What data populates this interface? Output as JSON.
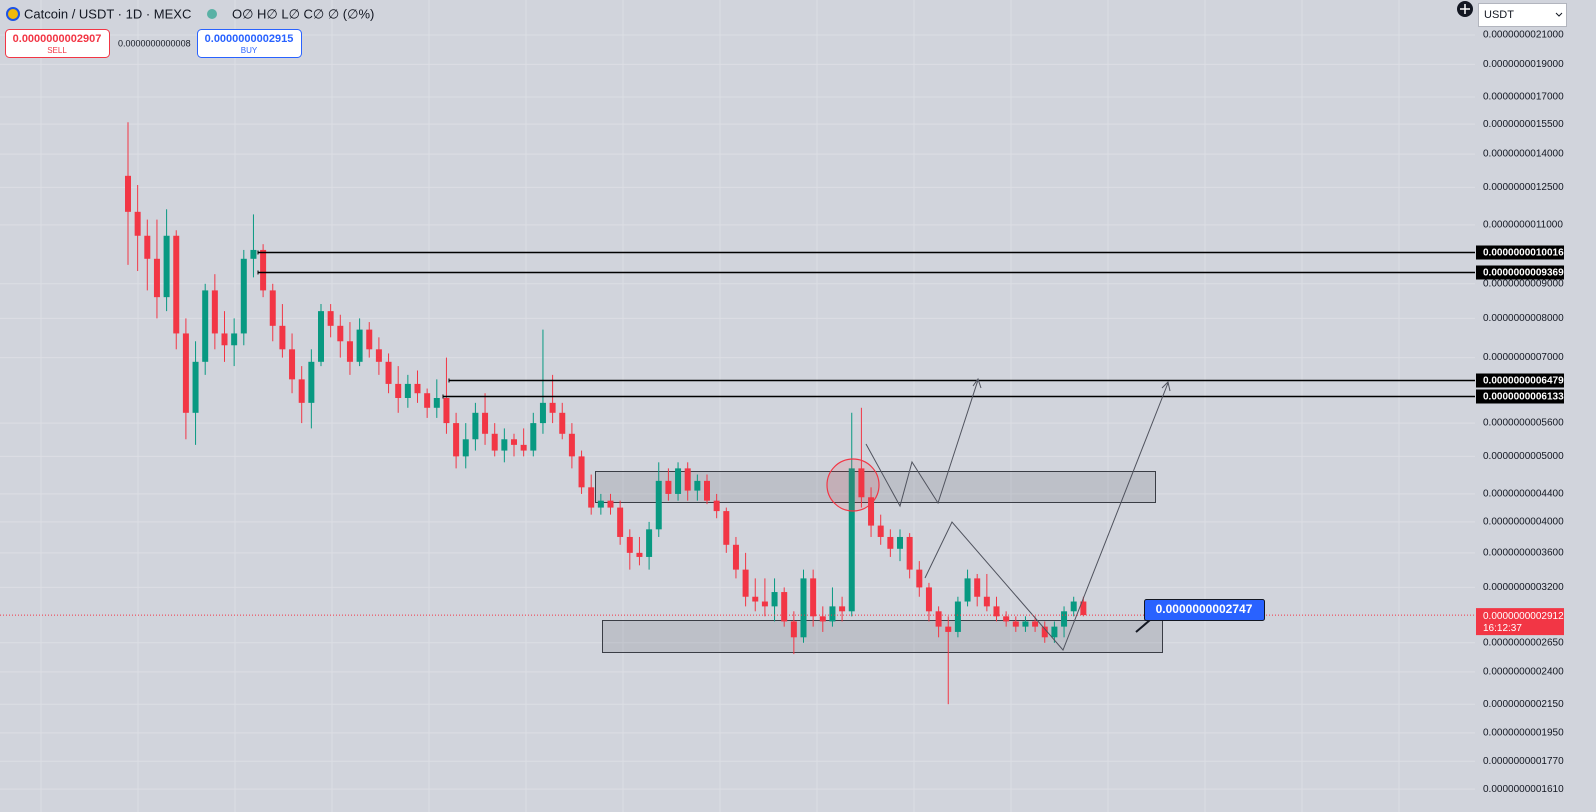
{
  "header": {
    "symbol": "Catcoin / USDT · 1D · MEXC",
    "ohlc": "O∅ H∅ L∅ C∅ ∅ (∅%)",
    "sell_price": "0.0000000002907",
    "sell_label": "SELL",
    "spread": "0.0000000000008",
    "buy_price": "0.0000000002915",
    "buy_label": "BUY",
    "currency": "USDT"
  },
  "chart_data": {
    "type": "candlestick",
    "log_scale": true,
    "grid": true,
    "up_color": "#089981",
    "down_color": "#f23645",
    "open": [
      1.3e-09,
      1.15e-09,
      1.06e-09,
      9.8e-10,
      8.6e-10,
      1.06e-09,
      7.6e-10,
      5.8e-10,
      6.9e-10,
      8.8e-10,
      7.6e-10,
      7.3e-10,
      7.6e-10,
      9.8e-10,
      1.01e-09,
      8.8e-10,
      7.8e-10,
      7.2e-10,
      6.5e-10,
      6e-10,
      6.9e-10,
      8.2e-10,
      7.8e-10,
      7.4e-10,
      6.9e-10,
      7.7e-10,
      7.2e-10,
      6.9e-10,
      6.4e-10,
      6.1e-10,
      6.4e-10,
      6.2e-10,
      5.9e-10,
      6.1e-10,
      5.6e-10,
      5e-10,
      5.3e-10,
      5.8e-10,
      5.4e-10,
      5.1e-10,
      5.3e-10,
      5.2e-10,
      5.1e-10,
      5.6e-10,
      6e-10,
      5.8e-10,
      5.4e-10,
      5e-10,
      4.5e-10,
      4.2e-10,
      4.3e-10,
      4.2e-10,
      3.8e-10,
      3.6e-10,
      3.55e-10,
      3.9e-10,
      4.6e-10,
      4.4e-10,
      4.8e-10,
      4.45e-10,
      4.6e-10,
      4.3e-10,
      4.15e-10,
      3.7e-10,
      3.4e-10,
      3.1e-10,
      3.05e-10,
      3e-10,
      3.15e-10,
      2.85e-10,
      2.7e-10,
      3.3e-10,
      2.9e-10,
      2.85e-10,
      3e-10,
      2.95e-10,
      4.8e-10,
      4.35e-10,
      3.95e-10,
      3.8e-10,
      3.65e-10,
      3.8e-10,
      3.4e-10,
      3.2e-10,
      2.95e-10,
      2.8e-10,
      2.75e-10,
      3.05e-10,
      3.3e-10,
      3.1e-10,
      3e-10,
      2.9e-10,
      2.85e-10,
      2.8e-10,
      2.85e-10,
      2.8e-10,
      2.7e-10,
      2.8e-10,
      2.95e-10,
      3.05e-10
    ],
    "high": [
      1.56e-09,
      1.26e-09,
      1.12e-09,
      1.12e-09,
      1.16e-09,
      1.08e-09,
      8e-10,
      7.4e-10,
      9e-10,
      9.3e-10,
      8.2e-10,
      8e-10,
      1.01e-09,
      1.14e-09,
      1.03e-09,
      9e-10,
      8.4e-10,
      7.6e-10,
      6.8e-10,
      7.2e-10,
      8.4e-10,
      8.4e-10,
      8.1e-10,
      7.9e-10,
      8e-10,
      7.9e-10,
      7.5e-10,
      7.1e-10,
      6.8e-10,
      6.6e-10,
      6.7e-10,
      6.3e-10,
      6.5e-10,
      7e-10,
      5.8e-10,
      5.6e-10,
      6e-10,
      6.2e-10,
      5.6e-10,
      5.5e-10,
      5.4e-10,
      5.5e-10,
      5.8e-10,
      7.7e-10,
      6.6e-10,
      6e-10,
      5.6e-10,
      5.1e-10,
      4.7e-10,
      4.4e-10,
      4.4e-10,
      4.3e-10,
      3.9e-10,
      3.8e-10,
      4e-10,
      4.9e-10,
      4.8e-10,
      4.9e-10,
      4.9e-10,
      4.7e-10,
      4.7e-10,
      4.4e-10,
      4.2e-10,
      3.8e-10,
      3.6e-10,
      3.3e-10,
      3.3e-10,
      3.3e-10,
      3.2e-10,
      2.95e-10,
      3.4e-10,
      3.4e-10,
      3e-10,
      3.2e-10,
      3.1e-10,
      5.8e-10,
      5.9e-10,
      4.5e-10,
      4.1e-10,
      3.9e-10,
      3.9e-10,
      3.85e-10,
      3.5e-10,
      3.25e-10,
      3e-10,
      2.9e-10,
      3.1e-10,
      3.4e-10,
      3.35e-10,
      3.35e-10,
      3.1e-10,
      2.95e-10,
      2.9e-10,
      2.9e-10,
      2.9e-10,
      2.85e-10,
      2.85e-10,
      3e-10,
      3.1e-10,
      3.1e-10
    ],
    "low": [
      9.6e-10,
      9.4e-10,
      8.8e-10,
      8e-10,
      8.2e-10,
      7.2e-10,
      5.3e-10,
      5.2e-10,
      6.6e-10,
      7.2e-10,
      6.9e-10,
      6.8e-10,
      7.3e-10,
      9.2e-10,
      8.6e-10,
      7.4e-10,
      7e-10,
      6.2e-10,
      5.6e-10,
      5.5e-10,
      6.8e-10,
      7.5e-10,
      7e-10,
      6.6e-10,
      6.8e-10,
      7e-10,
      6.6e-10,
      6.2e-10,
      5.8e-10,
      5.9e-10,
      6e-10,
      5.7e-10,
      5.7e-10,
      5.4e-10,
      4.8e-10,
      4.8e-10,
      5.1e-10,
      5.2e-10,
      5e-10,
      4.9e-10,
      5e-10,
      5e-10,
      5e-10,
      5.4e-10,
      5.6e-10,
      5.3e-10,
      4.8e-10,
      4.4e-10,
      4.1e-10,
      4.1e-10,
      4.1e-10,
      3.7e-10,
      3.4e-10,
      3.45e-10,
      3.4e-10,
      3.8e-10,
      4.3e-10,
      4.3e-10,
      4.3e-10,
      4.3e-10,
      4.25e-10,
      4.05e-10,
      3.6e-10,
      3.3e-10,
      3e-10,
      2.95e-10,
      2.9e-10,
      2.85e-10,
      2.8e-10,
      2.55e-10,
      2.65e-10,
      2.8e-10,
      2.75e-10,
      2.8e-10,
      2.85e-10,
      2.9e-10,
      4.2e-10,
      3.8e-10,
      3.7e-10,
      3.55e-10,
      3.5e-10,
      3.3e-10,
      3.1e-10,
      2.85e-10,
      2.7e-10,
      2.15e-10,
      2.7e-10,
      3e-10,
      3e-10,
      2.95e-10,
      2.85e-10,
      2.8e-10,
      2.75e-10,
      2.75e-10,
      2.75e-10,
      2.65e-10,
      2.65e-10,
      2.7e-10,
      2.9e-10,
      2.9e-10
    ],
    "close": [
      1.15e-09,
      1.06e-09,
      9.8e-10,
      8.6e-10,
      1.06e-09,
      7.6e-10,
      5.8e-10,
      6.9e-10,
      8.8e-10,
      7.6e-10,
      7.3e-10,
      7.6e-10,
      9.8e-10,
      1.01e-09,
      8.8e-10,
      7.8e-10,
      7.2e-10,
      6.5e-10,
      6e-10,
      6.9e-10,
      8.2e-10,
      7.8e-10,
      7.4e-10,
      6.9e-10,
      7.7e-10,
      7.2e-10,
      6.9e-10,
      6.4e-10,
      6.1e-10,
      6.4e-10,
      6.2e-10,
      5.9e-10,
      6.1e-10,
      5.6e-10,
      5e-10,
      5.3e-10,
      5.8e-10,
      5.4e-10,
      5.1e-10,
      5.3e-10,
      5.2e-10,
      5.1e-10,
      5.6e-10,
      6e-10,
      5.8e-10,
      5.4e-10,
      5e-10,
      4.5e-10,
      4.2e-10,
      4.3e-10,
      4.2e-10,
      3.8e-10,
      3.6e-10,
      3.55e-10,
      3.9e-10,
      4.6e-10,
      4.4e-10,
      4.8e-10,
      4.45e-10,
      4.6e-10,
      4.3e-10,
      4.15e-10,
      3.7e-10,
      3.4e-10,
      3.1e-10,
      3.05e-10,
      3e-10,
      3.15e-10,
      2.85e-10,
      2.7e-10,
      3.3e-10,
      2.9e-10,
      2.85e-10,
      3e-10,
      2.95e-10,
      4.8e-10,
      4.35e-10,
      3.95e-10,
      3.8e-10,
      3.65e-10,
      3.8e-10,
      3.4e-10,
      3.2e-10,
      2.95e-10,
      2.8e-10,
      2.75e-10,
      3.05e-10,
      3.3e-10,
      3.1e-10,
      3e-10,
      2.9e-10,
      2.85e-10,
      2.8e-10,
      2.85e-10,
      2.8e-10,
      2.7e-10,
      2.8e-10,
      2.95e-10,
      3.05e-10,
      2.912e-10
    ],
    "ylim": [
      1.562e-10,
      2.366e-09
    ],
    "yticks": [
      {
        "value": 2.1e-09,
        "label": "0.0000000021000"
      },
      {
        "value": 1.9e-09,
        "label": "0.0000000019000"
      },
      {
        "value": 1.7e-09,
        "label": "0.0000000017000"
      },
      {
        "value": 1.55e-09,
        "label": "0.0000000015500"
      },
      {
        "value": 1.4e-09,
        "label": "0.0000000014000"
      },
      {
        "value": 1.25e-09,
        "label": "0.0000000012500"
      },
      {
        "value": 1.1e-09,
        "label": "0.0000000011000"
      },
      {
        "value": 9e-10,
        "label": "0.0000000009000"
      },
      {
        "value": 8e-10,
        "label": "0.0000000008000"
      },
      {
        "value": 7e-10,
        "label": "0.0000000007000"
      },
      {
        "value": 5.6e-10,
        "label": "0.0000000005600"
      },
      {
        "value": 5e-10,
        "label": "0.0000000005000"
      },
      {
        "value": 4.4e-10,
        "label": "0.0000000004400"
      },
      {
        "value": 4e-10,
        "label": "0.0000000004000"
      },
      {
        "value": 3.6e-10,
        "label": "0.0000000003600"
      },
      {
        "value": 3.2e-10,
        "label": "0.0000000003200"
      },
      {
        "value": 2.65e-10,
        "label": "0.0000000002650"
      },
      {
        "value": 2.4e-10,
        "label": "0.0000000002400"
      },
      {
        "value": 2.15e-10,
        "label": "0.0000000002150"
      },
      {
        "value": 1.95e-10,
        "label": "0.0000000001950"
      },
      {
        "value": 1.77e-10,
        "label": "0.0000000001770"
      },
      {
        "value": 1.61e-10,
        "label": "0.0000000001610"
      }
    ],
    "levels": [
      {
        "value": 1.0016e-09,
        "label": "0.0000000010016"
      },
      {
        "value": 9.369e-10,
        "label": "0.0000000009369"
      },
      {
        "value": 6.479e-10,
        "label": "0.0000000006479"
      },
      {
        "value": 6.133e-10,
        "label": "0.0000000006133"
      }
    ],
    "last_price": {
      "value": 2.912e-10,
      "label": "0.0000000002912"
    },
    "countdown": "16:12:37",
    "annotation": "0.0000000002747"
  }
}
